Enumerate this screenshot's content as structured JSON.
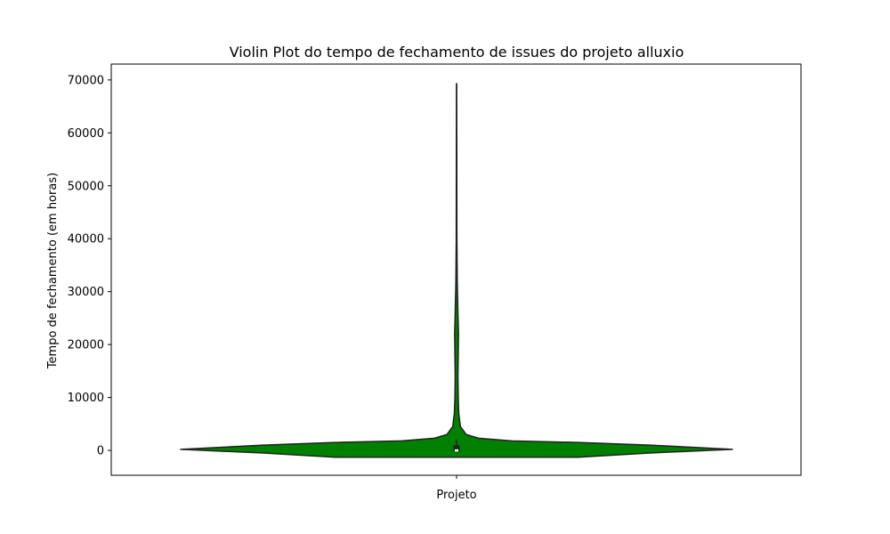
{
  "chart_data": {
    "type": "violin",
    "title": "Violin Plot do tempo de fechamento de issues do projeto alluxio",
    "xlabel": "",
    "ylabel": "Tempo de fechamento (em horas)",
    "categories": [
      "Projeto"
    ],
    "ylim": [
      -4700,
      73000
    ],
    "yticks": [
      0,
      10000,
      20000,
      30000,
      40000,
      50000,
      60000,
      70000
    ],
    "ytick_labels": [
      "0",
      "10000",
      "20000",
      "30000",
      "40000",
      "50000",
      "60000",
      "70000"
    ],
    "grid": false,
    "colors": {
      "violin_fill": "#008000",
      "violin_edge": "#222222",
      "box": "#222222",
      "median": "#ffffff"
    },
    "violin": {
      "min": 0,
      "max": 69300,
      "q1": 0,
      "median": 0,
      "q3": 800,
      "whisker_low": 0,
      "whisker_high": 2000,
      "density_profile": [
        {
          "y": -1300,
          "w": 0.44
        },
        {
          "y": -500,
          "w": 0.7
        },
        {
          "y": 200,
          "w": 1.0
        },
        {
          "y": 1000,
          "w": 0.7
        },
        {
          "y": 1500,
          "w": 0.44
        },
        {
          "y": 1800,
          "w": 0.2
        },
        {
          "y": 2300,
          "w": 0.08
        },
        {
          "y": 3000,
          "w": 0.035
        },
        {
          "y": 4500,
          "w": 0.014
        },
        {
          "y": 7000,
          "w": 0.008
        },
        {
          "y": 10000,
          "w": 0.006
        },
        {
          "y": 14000,
          "w": 0.005
        },
        {
          "y": 18000,
          "w": 0.006
        },
        {
          "y": 22000,
          "w": 0.007
        },
        {
          "y": 26000,
          "w": 0.005
        },
        {
          "y": 32000,
          "w": 0.0025
        },
        {
          "y": 40000,
          "w": 0.0012
        },
        {
          "y": 55000,
          "w": 0.0008
        },
        {
          "y": 69300,
          "w": 0.0005
        }
      ]
    }
  }
}
